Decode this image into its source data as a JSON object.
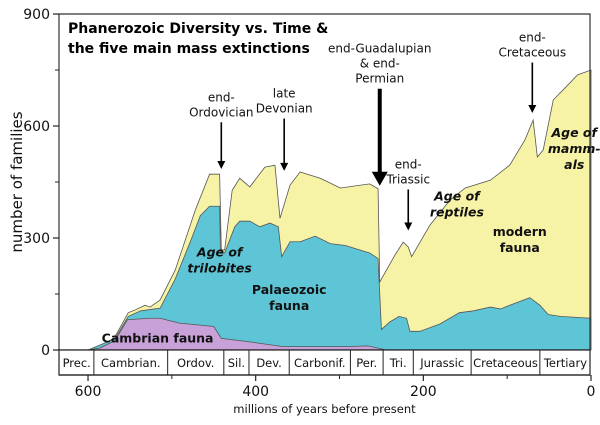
{
  "chart_data": {
    "type": "area",
    "title_lines": [
      "Phanerozoic Diversity vs. Time &",
      "the five main mass extinctions"
    ],
    "xlabel": "millions of years before present",
    "ylabel": "number of families",
    "xlim": [
      634,
      0
    ],
    "ylim": [
      0,
      900
    ],
    "x_ticks": [
      600,
      400,
      200,
      0
    ],
    "x_minor_ticks": [
      500,
      300,
      100
    ],
    "y_ticks": [
      0,
      300,
      600,
      900
    ],
    "y_minor_ticks": [
      150,
      450,
      750
    ],
    "grid": false,
    "colors": {
      "modern": "#f6f2a6",
      "palaeozoic": "#5ec5d6",
      "cambrian": "#c7a1d8",
      "outline": "#555555"
    },
    "series": [
      {
        "name": "total (modern fauna top)",
        "key": "modern",
        "points": [
          [
            600,
            0
          ],
          [
            586,
            5
          ],
          [
            568,
            35
          ],
          [
            552,
            100
          ],
          [
            544,
            107
          ],
          [
            532,
            120
          ],
          [
            526,
            115
          ],
          [
            514,
            134
          ],
          [
            496,
            214
          ],
          [
            472,
            375
          ],
          [
            455,
            471
          ],
          [
            443,
            471
          ],
          [
            441,
            268
          ],
          [
            437,
            268
          ],
          [
            428,
            428
          ],
          [
            419,
            460
          ],
          [
            407,
            437
          ],
          [
            389,
            490
          ],
          [
            377,
            495
          ],
          [
            371,
            353
          ],
          [
            359,
            442
          ],
          [
            347,
            477
          ],
          [
            323,
            460
          ],
          [
            299,
            434
          ],
          [
            264,
            445
          ],
          [
            254,
            432
          ],
          [
            252,
            182
          ],
          [
            234,
            254
          ],
          [
            224,
            289
          ],
          [
            218,
            276
          ],
          [
            214,
            250
          ],
          [
            192,
            335
          ],
          [
            168,
            402
          ],
          [
            150,
            434
          ],
          [
            120,
            455
          ],
          [
            97,
            495
          ],
          [
            79,
            562
          ],
          [
            69,
            616
          ],
          [
            64,
            517
          ],
          [
            57,
            536
          ],
          [
            45,
            670
          ],
          [
            31,
            702
          ],
          [
            16,
            737
          ],
          [
            0,
            750
          ]
        ]
      },
      {
        "name": "Palaeozoic fauna (cumulative top)",
        "key": "palaeozoic",
        "points": [
          [
            600,
            0
          ],
          [
            568,
            30
          ],
          [
            552,
            90
          ],
          [
            537,
            105
          ],
          [
            514,
            112
          ],
          [
            496,
            190
          ],
          [
            478,
            290
          ],
          [
            466,
            360
          ],
          [
            455,
            385
          ],
          [
            443,
            385
          ],
          [
            442,
            260
          ],
          [
            437,
            260
          ],
          [
            425,
            330
          ],
          [
            419,
            345
          ],
          [
            407,
            345
          ],
          [
            395,
            330
          ],
          [
            383,
            340
          ],
          [
            373,
            330
          ],
          [
            369,
            250
          ],
          [
            359,
            290
          ],
          [
            347,
            290
          ],
          [
            329,
            305
          ],
          [
            311,
            285
          ],
          [
            293,
            280
          ],
          [
            264,
            260
          ],
          [
            254,
            245
          ],
          [
            250,
            55
          ],
          [
            240,
            75
          ],
          [
            229,
            90
          ],
          [
            220,
            85
          ],
          [
            216,
            50
          ],
          [
            204,
            50
          ],
          [
            180,
            70
          ],
          [
            157,
            100
          ],
          [
            140,
            105
          ],
          [
            120,
            115
          ],
          [
            108,
            110
          ],
          [
            91,
            125
          ],
          [
            73,
            140
          ],
          [
            61,
            120
          ],
          [
            51,
            95
          ],
          [
            37,
            90
          ],
          [
            0,
            85
          ]
        ]
      },
      {
        "name": "Cambrian fauna",
        "key": "cambrian",
        "points": [
          [
            601,
            0
          ],
          [
            586,
            5
          ],
          [
            568,
            25
          ],
          [
            553,
            81
          ],
          [
            527,
            85
          ],
          [
            514,
            85
          ],
          [
            491,
            72
          ],
          [
            450,
            63
          ],
          [
            441,
            31
          ],
          [
            408,
            22
          ],
          [
            367,
            9
          ],
          [
            294,
            9
          ],
          [
            266,
            11
          ],
          [
            248,
            2
          ],
          [
            245,
            0
          ]
        ]
      }
    ],
    "periods": [
      {
        "label": "Prec.",
        "from": 634,
        "to": 593
      },
      {
        "label": "Cambrian.",
        "from": 593,
        "to": 505
      },
      {
        "label": "Ordov.",
        "from": 505,
        "to": 438
      },
      {
        "label": "Sil.",
        "from": 438,
        "to": 408
      },
      {
        "label": "Dev.",
        "from": 408,
        "to": 360
      },
      {
        "label": "Carbonif.",
        "from": 360,
        "to": 287
      },
      {
        "label": "Per.",
        "from": 287,
        "to": 248
      },
      {
        "label": "Tri.",
        "from": 248,
        "to": 212
      },
      {
        "label": "Jurassic",
        "from": 212,
        "to": 143
      },
      {
        "label": "Cretaceous",
        "from": 143,
        "to": 61
      },
      {
        "label": "Tertiary",
        "from": 61,
        "to": 0
      }
    ],
    "extinctions": [
      {
        "lines": [
          "end-",
          "Ordovician"
        ],
        "at": 441,
        "arrow_from": 610,
        "arrow_to": 485,
        "bold": false
      },
      {
        "lines": [
          "late",
          "Devonian"
        ],
        "at": 366,
        "arrow_from": 620,
        "arrow_to": 480,
        "bold": false
      },
      {
        "lines": [
          "end-Guadalupian",
          "& end-",
          "Permian"
        ],
        "at": 252,
        "arrow_from": 700,
        "arrow_to": 440,
        "bold": true
      },
      {
        "lines": [
          "end-",
          "Triassic"
        ],
        "at": 218,
        "arrow_from": 430,
        "arrow_to": 320,
        "bold": false
      },
      {
        "lines": [
          "end-",
          "Cretaceous"
        ],
        "at": 70,
        "arrow_from": 770,
        "arrow_to": 635,
        "bold": false
      }
    ],
    "region_labels": [
      {
        "lines": [
          "Age of",
          "trilobites"
        ],
        "x": 443,
        "y": 250,
        "italic": true
      },
      {
        "lines": [
          "Palaeozoic",
          "fauna"
        ],
        "x": 360,
        "y": 150,
        "italic": false
      },
      {
        "lines": [
          "Cambrian fauna"
        ],
        "x": 517,
        "y": 20,
        "italic": false
      },
      {
        "lines": [
          "Age of",
          "reptiles"
        ],
        "x": 160,
        "y": 400,
        "italic": true
      },
      {
        "lines": [
          "modern",
          "fauna"
        ],
        "x": 85,
        "y": 305,
        "italic": false
      },
      {
        "lines": [
          "Age of",
          "mamm-",
          "als"
        ],
        "x": 20,
        "y": 570,
        "italic": true
      }
    ]
  }
}
